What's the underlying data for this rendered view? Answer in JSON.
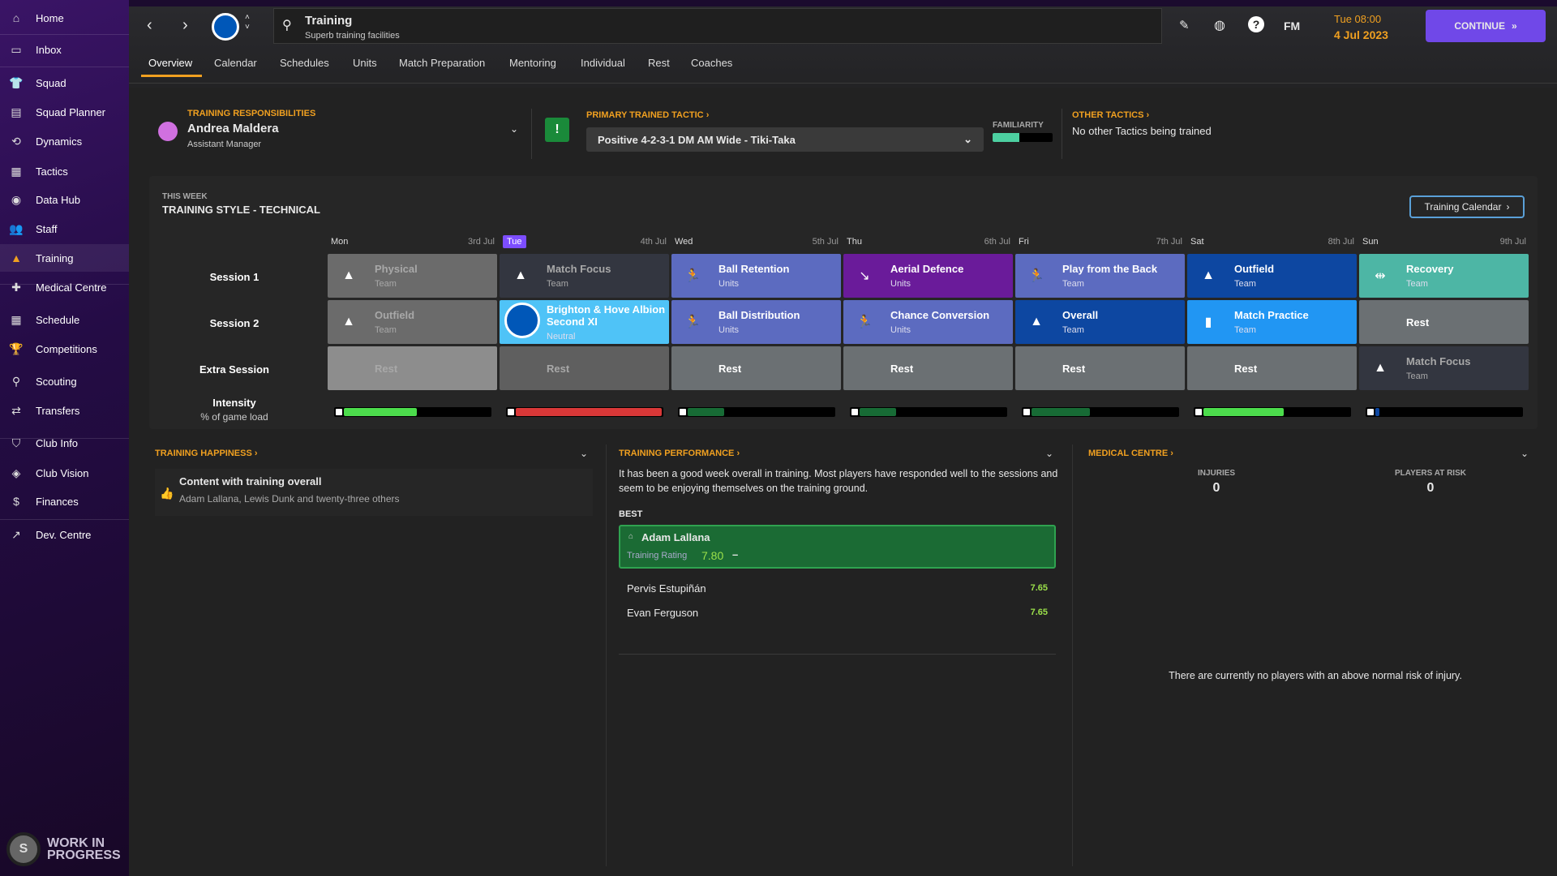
{
  "sidebar": {
    "items": [
      {
        "label": "Home",
        "icon": "home-icon"
      },
      {
        "label": "Inbox",
        "icon": "inbox-icon"
      },
      {
        "label": "Squad",
        "icon": "shirt-icon"
      },
      {
        "label": "Squad Planner",
        "icon": "clipboard-icon"
      },
      {
        "label": "Dynamics",
        "icon": "dynamics-icon"
      },
      {
        "label": "Tactics",
        "icon": "tactics-icon"
      },
      {
        "label": "Data Hub",
        "icon": "data-hub-icon"
      },
      {
        "label": "Staff",
        "icon": "staff-icon"
      },
      {
        "label": "Training",
        "icon": "cone-icon",
        "active": true
      },
      {
        "label": "Medical Centre",
        "icon": "medical-icon"
      },
      {
        "label": "Schedule",
        "icon": "calendar-icon"
      },
      {
        "label": "Competitions",
        "icon": "trophy-icon"
      },
      {
        "label": "Scouting",
        "icon": "scouting-icon"
      },
      {
        "label": "Transfers",
        "icon": "transfers-icon"
      },
      {
        "label": "Club Info",
        "icon": "shield-icon"
      },
      {
        "label": "Club Vision",
        "icon": "vision-icon"
      },
      {
        "label": "Finances",
        "icon": "finances-icon"
      },
      {
        "label": "Dev. Centre",
        "icon": "dev-centre-icon"
      }
    ],
    "footer": "WORK IN PROGRESS"
  },
  "header": {
    "title": "Training",
    "subtitle": "Superb training facilities",
    "fm_label": "FM",
    "time": "Tue 08:00",
    "date": "4 Jul 2023",
    "continue_label": "CONTINUE"
  },
  "tabs": [
    "Overview",
    "Calendar",
    "Schedules",
    "Units",
    "Match Preparation",
    "Mentoring",
    "Individual",
    "Rest",
    "Coaches"
  ],
  "responsibilities": {
    "heading": "TRAINING RESPONSIBILITIES",
    "name": "Andrea Maldera",
    "role": "Assistant Manager"
  },
  "tactic": {
    "heading": "PRIMARY TRAINED TACTIC",
    "value": "Positive 4-2-3-1 DM AM Wide - Tiki-Taka",
    "familiarity_label": "FAMILIARITY",
    "familiarity": 0.45
  },
  "other_tactics": {
    "heading": "OTHER TACTICS",
    "text": "No other Tactics being trained"
  },
  "week": {
    "kicker": "THIS WEEK",
    "style": "TRAINING STYLE - TECHNICAL",
    "calendar_button": "Training Calendar",
    "row_labels": [
      "Session 1",
      "Session 2",
      "Extra Session"
    ],
    "intensity_label": "Intensity",
    "intensity_sub": "% of game load",
    "days": [
      {
        "day": "Mon",
        "date": "3rd Jul",
        "intensity": 0.5,
        "bar_color": "#4cdc4c",
        "sessions": [
          {
            "title": "Physical",
            "sub": "Team",
            "color": "#6b6b6b",
            "icon": "cone-icon",
            "dim": true
          },
          {
            "title": "Outfield",
            "sub": "Team",
            "color": "#6b6b6b",
            "icon": "cone-icon",
            "dim": true
          },
          {
            "title": "Rest",
            "sub": "",
            "color": "#8d8d8d",
            "dim": true
          }
        ]
      },
      {
        "day": "Tue",
        "date": "4th Jul",
        "today": true,
        "intensity": 1.0,
        "bar_color": "#d93838",
        "sessions": [
          {
            "title": "Match Focus",
            "sub": "Team",
            "color": "#333640",
            "icon": "cone-icon",
            "dim": true
          },
          {
            "title": "Brighton & Hove Albion Second XI",
            "sub": "Neutral",
            "color": "#4fc3f7",
            "icon": "club-badge-icon"
          },
          {
            "title": "Rest",
            "sub": "",
            "color": "#5f5f5f",
            "dim": true
          }
        ]
      },
      {
        "day": "Wed",
        "date": "5th Jul",
        "intensity": 0.25,
        "bar_color": "#176b35",
        "sessions": [
          {
            "title": "Ball Retention",
            "sub": "Units",
            "color": "#5c6bc0",
            "icon": "player-ball-icon"
          },
          {
            "title": "Ball Distribution",
            "sub": "Units",
            "color": "#5c6bc0",
            "icon": "player-ball-icon"
          },
          {
            "title": "Rest",
            "sub": "",
            "color": "#6b7073"
          }
        ]
      },
      {
        "day": "Thu",
        "date": "6th Jul",
        "intensity": 0.25,
        "bar_color": "#176b35",
        "sessions": [
          {
            "title": "Aerial Defence",
            "sub": "Units",
            "color": "#6a1b9a",
            "icon": "tackle-icon"
          },
          {
            "title": "Chance Conversion",
            "sub": "Units",
            "color": "#5c6bc0",
            "icon": "player-ball-icon"
          },
          {
            "title": "Rest",
            "sub": "",
            "color": "#6b7073"
          }
        ]
      },
      {
        "day": "Fri",
        "date": "7th Jul",
        "intensity": 0.4,
        "bar_color": "#176b35",
        "sessions": [
          {
            "title": "Play from the Back",
            "sub": "Team",
            "color": "#5c6bc0",
            "icon": "player-ball-icon"
          },
          {
            "title": "Overall",
            "sub": "Team",
            "color": "#0d47a1",
            "icon": "cone-icon"
          },
          {
            "title": "Rest",
            "sub": "",
            "color": "#6b7073"
          }
        ]
      },
      {
        "day": "Sat",
        "date": "8th Jul",
        "intensity": 0.55,
        "bar_color": "#4cdc4c",
        "sessions": [
          {
            "title": "Outfield",
            "sub": "Team",
            "color": "#0d47a1",
            "icon": "cone-icon"
          },
          {
            "title": "Match Practice",
            "sub": "Team",
            "color": "#2196f3",
            "icon": "tactics-board-icon"
          },
          {
            "title": "Rest",
            "sub": "",
            "color": "#6b7073"
          }
        ]
      },
      {
        "day": "Sun",
        "date": "9th Jul",
        "intensity": 0.03,
        "bar_color": "#0d47a1",
        "sessions": [
          {
            "title": "Recovery",
            "sub": "Team",
            "color": "#4db6a5",
            "icon": "dumbbell-icon"
          },
          {
            "title": "Rest",
            "sub": "",
            "color": "#6b7073"
          },
          {
            "title": "Match Focus",
            "sub": "Team",
            "color": "#333640",
            "icon": "cone-icon",
            "dim": true
          }
        ]
      }
    ]
  },
  "happiness": {
    "heading": "TRAINING HAPPINESS",
    "title": "Content with training overall",
    "players": "Adam Lallana, Lewis Dunk and twenty-three others"
  },
  "performance": {
    "heading": "TRAINING PERFORMANCE",
    "text": "It has been a good week overall in training. Most players have responded well to the sessions and seem to be enjoying themselves on the training ground.",
    "best_label": "BEST",
    "best": {
      "name": "Adam Lallana",
      "rating_label": "Training Rating",
      "rating": "7.80",
      "trend": "–"
    },
    "others": [
      {
        "name": "Pervis Estupiñán",
        "rating": "7.65"
      },
      {
        "name": "Evan Ferguson",
        "rating": "7.65"
      }
    ]
  },
  "medical": {
    "heading": "MEDICAL CENTRE",
    "injuries_label": "INJURIES",
    "injuries": "0",
    "risk_label": "PLAYERS AT RISK",
    "risk": "0",
    "note": "There are currently no players with an above normal risk of injury."
  },
  "colors": {
    "accent": "#f0a020",
    "continue": "#7048e8",
    "today": "#7c4dff"
  }
}
